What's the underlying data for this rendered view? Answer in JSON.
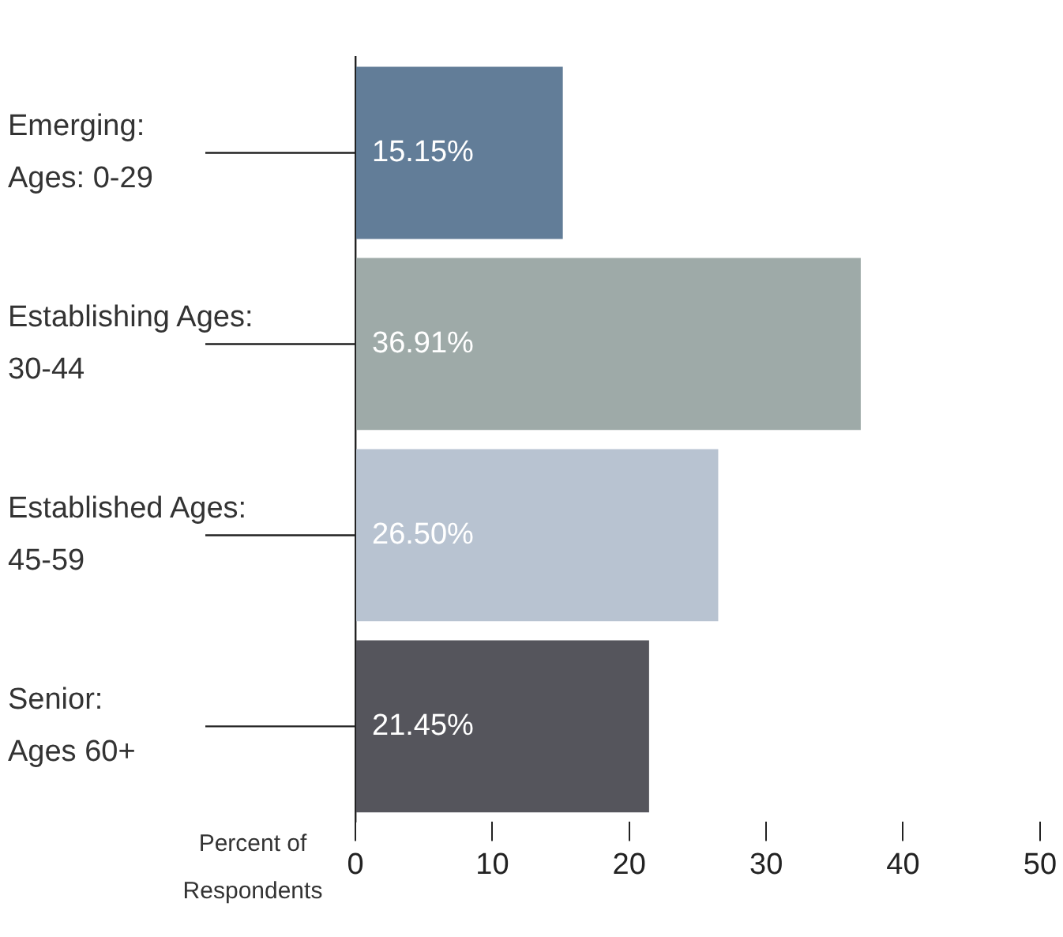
{
  "chart_data": {
    "type": "bar",
    "orientation": "horizontal",
    "xlabel": "Percent of\nRespondents",
    "categories": [
      "Emerging:\nAges: 0-29",
      "Establishing Ages:\n30-44",
      "Established Ages:\n45-59",
      "Senior:\nAges 60+"
    ],
    "values": [
      15.15,
      36.91,
      26.5,
      21.45
    ],
    "colors": [
      "#627d98",
      "#9eaaa8",
      "#b8c3d1",
      "#55555c"
    ],
    "value_labels": [
      "15.15%",
      "36.91%",
      "26.50%",
      "21.45%"
    ],
    "xlim": [
      0,
      50
    ],
    "xticks": [
      0,
      10,
      20,
      30,
      40,
      50
    ],
    "grid": false,
    "legend": false
  }
}
